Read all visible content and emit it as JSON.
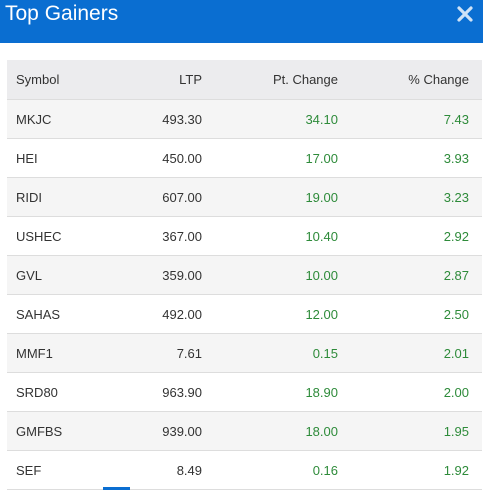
{
  "modal": {
    "title": "Top Gainers",
    "close_icon": "close-icon"
  },
  "colors": {
    "header_bg": "#0a6ed1",
    "positive": "#2e8b3a"
  },
  "table": {
    "headers": {
      "symbol": "Symbol",
      "ltp": "LTP",
      "pt_change": "Pt. Change",
      "pct_change": "% Change"
    },
    "rows": [
      {
        "symbol": "MKJC",
        "ltp": "493.30",
        "pt_change": "34.10",
        "pct_change": "7.43"
      },
      {
        "symbol": "HEI",
        "ltp": "450.00",
        "pt_change": "17.00",
        "pct_change": "3.93"
      },
      {
        "symbol": "RIDI",
        "ltp": "607.00",
        "pt_change": "19.00",
        "pct_change": "3.23"
      },
      {
        "symbol": "USHEC",
        "ltp": "367.00",
        "pt_change": "10.40",
        "pct_change": "2.92"
      },
      {
        "symbol": "GVL",
        "ltp": "359.00",
        "pt_change": "10.00",
        "pct_change": "2.87"
      },
      {
        "symbol": "SAHAS",
        "ltp": "492.00",
        "pt_change": "12.00",
        "pct_change": "2.50"
      },
      {
        "symbol": "MMF1",
        "ltp": "7.61",
        "pt_change": "0.15",
        "pct_change": "2.01"
      },
      {
        "symbol": "SRD80",
        "ltp": "963.90",
        "pt_change": "18.90",
        "pct_change": "2.00"
      },
      {
        "symbol": "GMFBS",
        "ltp": "939.00",
        "pt_change": "18.00",
        "pct_change": "1.95"
      },
      {
        "symbol": "SEF",
        "ltp": "8.49",
        "pt_change": "0.16",
        "pct_change": "1.92"
      }
    ]
  }
}
